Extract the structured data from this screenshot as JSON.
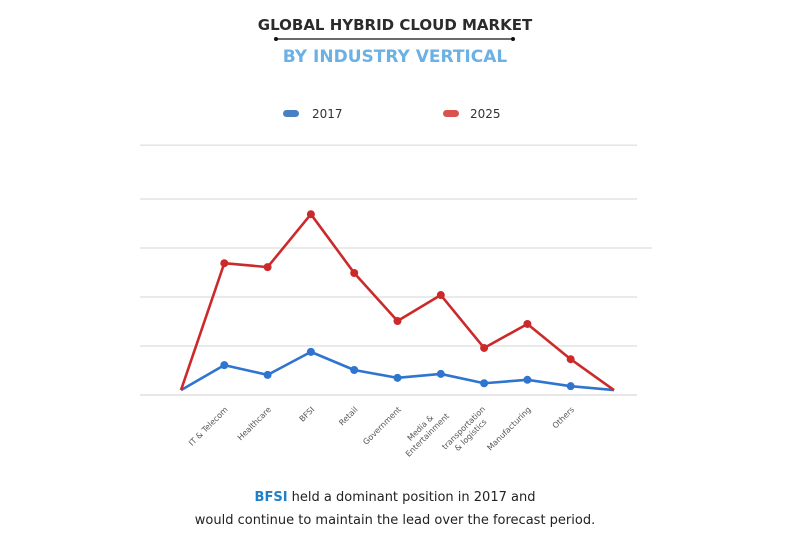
{
  "chart_data": {
    "type": "line",
    "title": "GLOBAL HYBRID CLOUD MARKET",
    "subtitle": "BY INDUSTRY VERTICAL",
    "xlabel": "",
    "ylabel": "",
    "ylim": [
      0,
      5.1
    ],
    "grid": true,
    "gridlines": [
      1,
      2,
      3,
      4,
      5.1
    ],
    "legend_position": "top-center",
    "categories": [
      "",
      "IT & Telecom",
      "Healthcare",
      "BFSI",
      "Retail",
      "Government",
      "Media & Entertainment",
      "transportation & logistics",
      "Manufacturing",
      "Others",
      ""
    ],
    "category_label_lines": [
      [],
      [
        "IT & Telecom"
      ],
      [
        "Healthcare"
      ],
      [
        "BFSI"
      ],
      [
        "Retail"
      ],
      [
        "Government"
      ],
      [
        "Media &",
        "Entertainment"
      ],
      [
        "transportation",
        "& logistics"
      ],
      [
        "Manufacturing"
      ],
      [
        "Others"
      ],
      []
    ],
    "series": [
      {
        "name": "2017",
        "color": "#2f74cf",
        "legend_color": "#4a7fc4",
        "values": [
          0.1,
          0.61,
          0.41,
          0.88,
          0.51,
          0.35,
          0.43,
          0.24,
          0.31,
          0.18,
          0.1
        ]
      },
      {
        "name": "2025",
        "color": "#cc2a2a",
        "legend_color": "#d9534f",
        "values": [
          0.1,
          2.69,
          2.61,
          3.69,
          2.49,
          1.51,
          2.04,
          0.96,
          1.45,
          0.73,
          0.1
        ]
      }
    ]
  },
  "caption": {
    "highlight": "BFSI",
    "line1_rest": " held a dominant position in 2017 and",
    "line2": "would continue to maintain the lead over the forecast period."
  }
}
